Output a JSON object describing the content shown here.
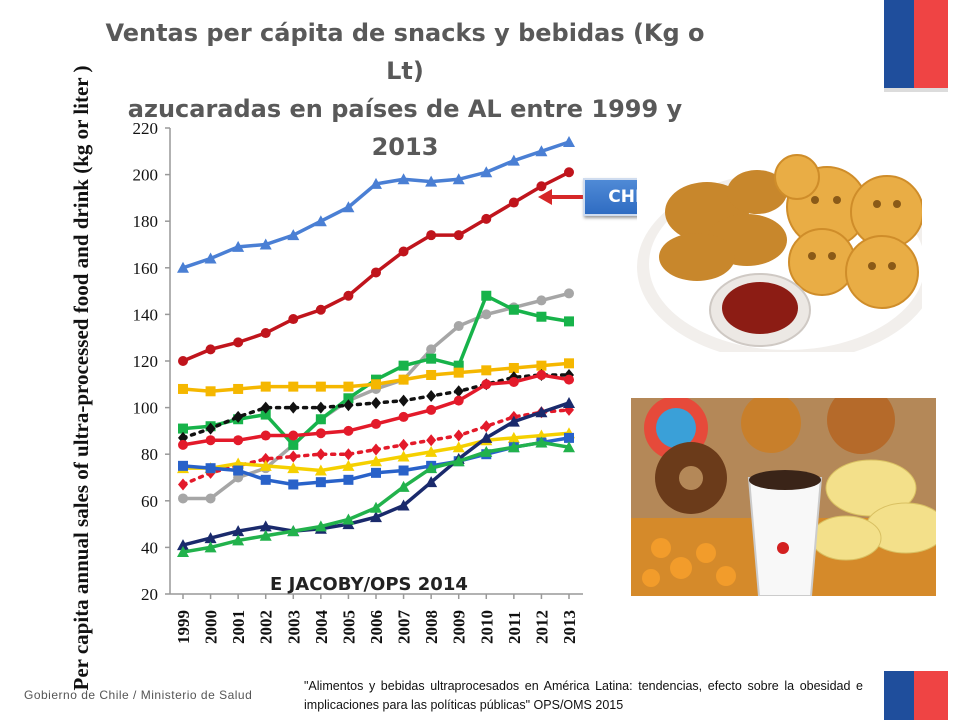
{
  "title_line1": "Ventas per cápita de snacks y bebidas (Kg o Lt)",
  "title_line2": "azucaradas en países de AL entre 1999 y 2013",
  "callout_label": "CHILE",
  "watermark": "E JACOBY/OPS 2014",
  "footer_left": "Gobierno de Chile / Ministerio de Salud",
  "footer_right": "\"Alimentos y bebidas ultraprocesados en América Latina: tendencias, efecto sobre la obesidad e implicaciones para las políticas públicas\" OPS/OMS 2015",
  "colors": {
    "flag_blue": "#1f4e9c",
    "flag_red": "#ef4444",
    "arrow": "#d62728"
  },
  "images": [
    {
      "name": "fried-snacks-plate-photo",
      "description_icon": "nuggets-and-smiley-potatoes"
    },
    {
      "name": "sweets-and-soda-photo",
      "description_icon": "donuts-chips-candy-soda"
    }
  ],
  "chart_data": {
    "type": "line",
    "ylabel": "Per capita annual sales of ultra-processed food and drink (kg or liter )",
    "xlabel": "",
    "ylim": [
      20,
      220
    ],
    "yticks": [
      20,
      40,
      60,
      80,
      100,
      120,
      140,
      160,
      180,
      200,
      220
    ],
    "x": [
      "1999",
      "2000",
      "2001",
      "2002",
      "2003",
      "2004",
      "2005",
      "2006",
      "2007",
      "2008",
      "2009",
      "2010",
      "2011",
      "2012",
      "2013"
    ],
    "grid": false,
    "series": [
      {
        "color": "#4a7fd4",
        "marker": "triangle",
        "dashed": false,
        "values": [
          160,
          164,
          169,
          170,
          174,
          180,
          186,
          196,
          198,
          197,
          198,
          201,
          206,
          210,
          214
        ]
      },
      {
        "name": "CHILE",
        "color": "#c0141c",
        "marker": "circle",
        "dashed": false,
        "values": [
          120,
          125,
          128,
          132,
          138,
          142,
          148,
          158,
          167,
          174,
          174,
          181,
          188,
          195,
          201
        ]
      },
      {
        "color": "#a6a6a6",
        "marker": "circle",
        "dashed": false,
        "values": [
          61,
          61,
          70,
          74,
          84,
          95,
          103,
          108,
          112,
          125,
          135,
          140,
          143,
          146,
          149
        ]
      },
      {
        "color": "#17b34a",
        "marker": "square",
        "dashed": false,
        "values": [
          91,
          92,
          95,
          97,
          84,
          95,
          104,
          112,
          118,
          121,
          118,
          148,
          142,
          139,
          137
        ]
      },
      {
        "color": "#f5b700",
        "marker": "square",
        "dashed": false,
        "values": [
          108,
          107,
          108,
          109,
          109,
          109,
          109,
          110,
          112,
          114,
          115,
          116,
          117,
          118,
          119
        ]
      },
      {
        "color": "#111111",
        "marker": "diamond",
        "dashed": true,
        "values": [
          87,
          91,
          96,
          100,
          100,
          100,
          101,
          102,
          103,
          105,
          107,
          110,
          113,
          114,
          114
        ]
      },
      {
        "color": "#e31a2a",
        "marker": "circle",
        "dashed": false,
        "values": [
          84,
          86,
          86,
          88,
          88,
          89,
          90,
          93,
          96,
          99,
          103,
          110,
          111,
          114,
          112
        ]
      },
      {
        "color": "#e31a2a",
        "marker": "diamond",
        "dashed": true,
        "values": [
          67,
          72,
          75,
          78,
          79,
          80,
          80,
          82,
          84,
          86,
          88,
          92,
          96,
          98,
          99
        ]
      },
      {
        "color": "#f5d000",
        "marker": "triangle",
        "dashed": false,
        "values": [
          74,
          74,
          76,
          75,
          74,
          73,
          75,
          77,
          79,
          81,
          83,
          86,
          87,
          88,
          89
        ]
      },
      {
        "color": "#2962c9",
        "marker": "square",
        "dashed": false,
        "values": [
          75,
          74,
          73,
          69,
          67,
          68,
          69,
          72,
          73,
          75,
          77,
          80,
          83,
          85,
          87
        ]
      },
      {
        "color": "#1a2a6c",
        "marker": "triangle",
        "dashed": false,
        "values": [
          41,
          44,
          47,
          49,
          47,
          48,
          50,
          53,
          58,
          68,
          78,
          87,
          94,
          98,
          102
        ]
      },
      {
        "color": "#22b24c",
        "marker": "triangle",
        "dashed": false,
        "values": [
          38,
          40,
          43,
          45,
          47,
          49,
          52,
          57,
          66,
          74,
          77,
          81,
          83,
          85,
          83
        ]
      }
    ]
  }
}
